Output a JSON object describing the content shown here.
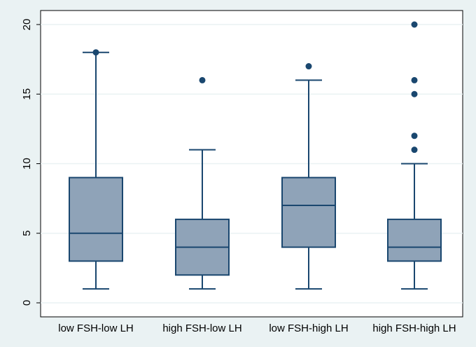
{
  "chart_data": {
    "type": "box",
    "title": "",
    "xlabel": "",
    "ylabel": "",
    "ylim": [
      0,
      20
    ],
    "yticks": [
      0,
      5,
      10,
      15,
      20
    ],
    "grid": true,
    "categories": [
      "low FSH-low LH",
      "high FSH-low LH",
      "low FSH-high LH",
      "high FSH-high LH"
    ],
    "boxes": [
      {
        "whisker_low": 1,
        "q1": 3,
        "median": 5,
        "q3": 9,
        "whisker_high": 18,
        "outliers": [
          18
        ]
      },
      {
        "whisker_low": 1,
        "q1": 2,
        "median": 4,
        "q3": 6,
        "whisker_high": 11,
        "outliers": [
          16
        ]
      },
      {
        "whisker_low": 1,
        "q1": 4,
        "median": 7,
        "q3": 9,
        "whisker_high": 16,
        "outliers": [
          17
        ]
      },
      {
        "whisker_low": 1,
        "q1": 3,
        "median": 4,
        "q3": 6,
        "whisker_high": 10,
        "outliers": [
          11,
          12,
          15,
          16,
          20
        ]
      }
    ],
    "colors": {
      "box_fill": "#8fa3b8",
      "box_stroke": "#1a476f",
      "outlier": "#1a476f",
      "plot_background": "#ffffff",
      "outer_background": "#eaf2f3",
      "grid": "#eaf2f3"
    }
  }
}
